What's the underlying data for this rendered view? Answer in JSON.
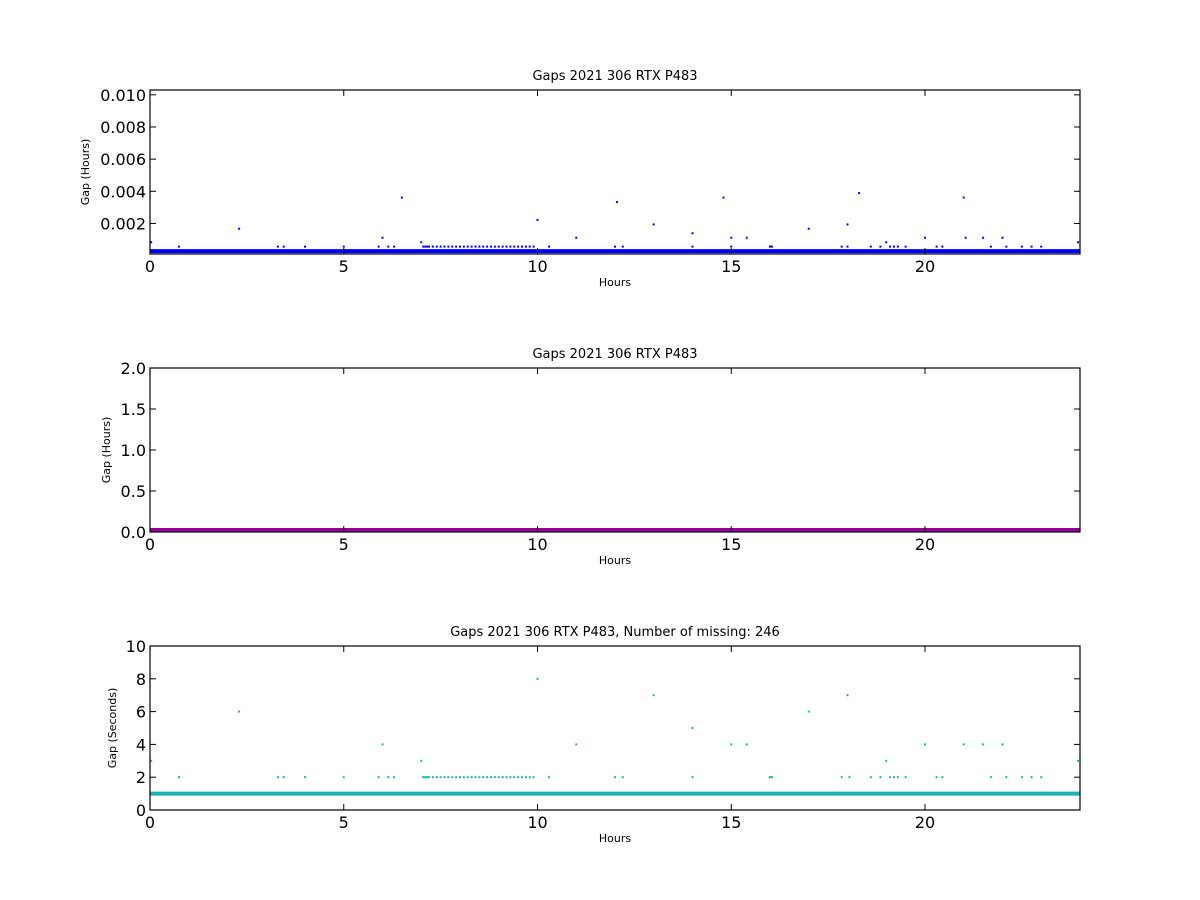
{
  "chart_data": [
    {
      "type": "scatter",
      "title": "Gaps 2021 306 RTX  P483",
      "xlabel": "Hours",
      "ylabel": "Gap (Hours)",
      "xlim": [
        0,
        24
      ],
      "ylim": [
        0.0001,
        0.0103
      ],
      "x_ticks": [
        0,
        5,
        10,
        15,
        20
      ],
      "x_tick_labels": [
        "0",
        "5",
        "10",
        "15",
        "20"
      ],
      "y_ticks": [
        0.002,
        0.004,
        0.006,
        0.008,
        0.01
      ],
      "y_tick_labels": [
        "0.002",
        "0.004",
        "0.006",
        "0.008",
        "0.010"
      ],
      "color": "#0000ff",
      "baseline": {
        "y": 0.000278,
        "x_from": 0,
        "x_to": 24
      },
      "points": [
        [
          0.03,
          0.00083
        ],
        [
          0.75,
          0.00056
        ],
        [
          2.3,
          0.00167
        ],
        [
          3.3,
          0.00056
        ],
        [
          3.45,
          0.00056
        ],
        [
          4.0,
          0.00056
        ],
        [
          5.0,
          0.00056
        ],
        [
          5.9,
          0.00056
        ],
        [
          6.0,
          0.00111
        ],
        [
          6.15,
          0.00056
        ],
        [
          6.3,
          0.00056
        ],
        [
          6.5,
          0.00361
        ],
        [
          7.0,
          0.00083
        ],
        [
          7.05,
          0.00056
        ],
        [
          7.1,
          0.00056
        ],
        [
          7.15,
          0.00056
        ],
        [
          7.2,
          0.00056
        ],
        [
          7.3,
          0.00056
        ],
        [
          7.4,
          0.00056
        ],
        [
          7.5,
          0.00056
        ],
        [
          7.6,
          0.00056
        ],
        [
          7.7,
          0.00056
        ],
        [
          7.8,
          0.00056
        ],
        [
          7.9,
          0.00056
        ],
        [
          8.0,
          0.00056
        ],
        [
          8.1,
          0.00056
        ],
        [
          8.2,
          0.00056
        ],
        [
          8.3,
          0.00056
        ],
        [
          8.4,
          0.00056
        ],
        [
          8.5,
          0.00056
        ],
        [
          8.6,
          0.00056
        ],
        [
          8.7,
          0.00056
        ],
        [
          8.8,
          0.00056
        ],
        [
          8.9,
          0.00056
        ],
        [
          9.0,
          0.00056
        ],
        [
          9.1,
          0.00056
        ],
        [
          9.2,
          0.00056
        ],
        [
          9.3,
          0.00056
        ],
        [
          9.4,
          0.00056
        ],
        [
          9.5,
          0.00056
        ],
        [
          9.6,
          0.00056
        ],
        [
          9.7,
          0.00056
        ],
        [
          9.8,
          0.00056
        ],
        [
          9.9,
          0.00056
        ],
        [
          10.0,
          0.00222
        ],
        [
          10.3,
          0.00056
        ],
        [
          11.0,
          0.00111
        ],
        [
          12.0,
          0.00056
        ],
        [
          12.05,
          0.00333
        ],
        [
          12.2,
          0.00056
        ],
        [
          13.0,
          0.00194
        ],
        [
          14.0,
          0.00139
        ],
        [
          14.0,
          0.00056
        ],
        [
          14.8,
          0.00361
        ],
        [
          15.0,
          0.00111
        ],
        [
          15.0,
          0.00056
        ],
        [
          15.4,
          0.00111
        ],
        [
          16.0,
          0.00056
        ],
        [
          16.05,
          0.00056
        ],
        [
          17.0,
          0.00167
        ],
        [
          17.85,
          0.00056
        ],
        [
          18.0,
          0.00194
        ],
        [
          18.0,
          0.00056
        ],
        [
          18.3,
          0.00389
        ],
        [
          18.6,
          0.00056
        ],
        [
          18.85,
          0.00056
        ],
        [
          19.0,
          0.00083
        ],
        [
          19.1,
          0.00056
        ],
        [
          19.2,
          0.00056
        ],
        [
          19.3,
          0.00056
        ],
        [
          19.5,
          0.00056
        ],
        [
          20.0,
          0.00111
        ],
        [
          20.3,
          0.00056
        ],
        [
          20.45,
          0.00056
        ],
        [
          21.0,
          0.00361
        ],
        [
          21.05,
          0.00111
        ],
        [
          21.5,
          0.00111
        ],
        [
          21.7,
          0.00056
        ],
        [
          22.0,
          0.00111
        ],
        [
          22.1,
          0.00056
        ],
        [
          22.5,
          0.00056
        ],
        [
          22.75,
          0.00056
        ],
        [
          23.0,
          0.00056
        ],
        [
          23.95,
          0.00083
        ]
      ]
    },
    {
      "type": "scatter",
      "title": "Gaps 2021 306 RTX  P483",
      "xlabel": "Hours",
      "ylabel": "Gap (Hours)",
      "xlim": [
        0,
        24
      ],
      "ylim": [
        0.0,
        2.0
      ],
      "x_ticks": [
        0,
        5,
        10,
        15,
        20
      ],
      "x_tick_labels": [
        "0",
        "5",
        "10",
        "15",
        "20"
      ],
      "y_ticks": [
        0.0,
        0.5,
        1.0,
        1.5,
        2.0
      ],
      "y_tick_labels": [
        "0.0",
        "0.5",
        "1.0",
        "1.5",
        "2.0"
      ],
      "color": "#990099",
      "baseline": {
        "y": 0.0,
        "x_from": 0,
        "x_to": 24
      },
      "points": []
    },
    {
      "type": "scatter",
      "title": "Gaps 2021 306 RTX  P483, Number of missing: 246",
      "xlabel": "Hours",
      "ylabel": "Gap (Seconds)",
      "xlim": [
        0,
        24
      ],
      "ylim": [
        0,
        10
      ],
      "x_ticks": [
        0,
        5,
        10,
        15,
        20
      ],
      "x_tick_labels": [
        "0",
        "5",
        "10",
        "15",
        "20"
      ],
      "y_ticks": [
        0,
        2,
        4,
        6,
        8,
        10
      ],
      "y_tick_labels": [
        "0",
        "2",
        "4",
        "6",
        "8",
        "10"
      ],
      "color": "#1ab3b3",
      "baseline": {
        "y": 1,
        "x_from": 0,
        "x_to": 24
      },
      "points": [
        [
          0.03,
          3
        ],
        [
          0.75,
          2
        ],
        [
          2.3,
          6
        ],
        [
          3.3,
          2
        ],
        [
          3.45,
          2
        ],
        [
          4.0,
          2
        ],
        [
          5.0,
          2
        ],
        [
          5.9,
          2
        ],
        [
          6.0,
          4
        ],
        [
          6.15,
          2
        ],
        [
          6.3,
          2
        ],
        [
          7.0,
          3
        ],
        [
          7.05,
          2
        ],
        [
          7.1,
          2
        ],
        [
          7.15,
          2
        ],
        [
          7.2,
          2
        ],
        [
          7.3,
          2
        ],
        [
          7.4,
          2
        ],
        [
          7.5,
          2
        ],
        [
          7.6,
          2
        ],
        [
          7.7,
          2
        ],
        [
          7.8,
          2
        ],
        [
          7.9,
          2
        ],
        [
          8.0,
          2
        ],
        [
          8.1,
          2
        ],
        [
          8.2,
          2
        ],
        [
          8.3,
          2
        ],
        [
          8.4,
          2
        ],
        [
          8.5,
          2
        ],
        [
          8.6,
          2
        ],
        [
          8.7,
          2
        ],
        [
          8.8,
          2
        ],
        [
          8.9,
          2
        ],
        [
          9.0,
          2
        ],
        [
          9.1,
          2
        ],
        [
          9.2,
          2
        ],
        [
          9.3,
          2
        ],
        [
          9.4,
          2
        ],
        [
          9.5,
          2
        ],
        [
          9.6,
          2
        ],
        [
          9.7,
          2
        ],
        [
          9.8,
          2
        ],
        [
          9.9,
          2
        ],
        [
          10.0,
          8
        ],
        [
          10.3,
          2
        ],
        [
          11.0,
          4
        ],
        [
          12.0,
          2
        ],
        [
          12.2,
          2
        ],
        [
          13.0,
          7
        ],
        [
          14.0,
          5
        ],
        [
          14.0,
          2
        ],
        [
          15.0,
          4
        ],
        [
          15.4,
          4
        ],
        [
          16.0,
          2
        ],
        [
          16.05,
          2
        ],
        [
          17.0,
          6
        ],
        [
          17.85,
          2
        ],
        [
          18.0,
          7
        ],
        [
          18.05,
          2
        ],
        [
          18.6,
          2
        ],
        [
          18.85,
          2
        ],
        [
          19.0,
          3
        ],
        [
          19.1,
          2
        ],
        [
          19.2,
          2
        ],
        [
          19.3,
          2
        ],
        [
          19.5,
          2
        ],
        [
          20.0,
          4
        ],
        [
          20.3,
          2
        ],
        [
          20.45,
          2
        ],
        [
          21.0,
          4
        ],
        [
          21.5,
          4
        ],
        [
          21.7,
          2
        ],
        [
          22.0,
          4
        ],
        [
          22.1,
          2
        ],
        [
          22.5,
          2
        ],
        [
          22.75,
          2
        ],
        [
          23.0,
          2
        ],
        [
          23.95,
          3
        ]
      ]
    }
  ]
}
